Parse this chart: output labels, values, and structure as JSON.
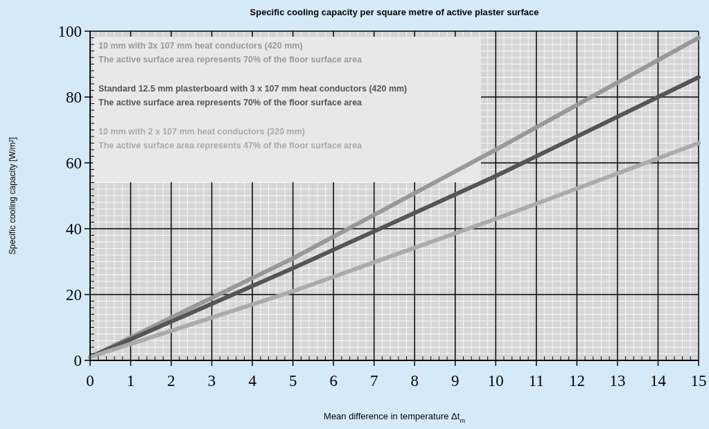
{
  "chart_data": {
    "type": "line",
    "title": "Specific cooling capacity per square metre of active plaster surface",
    "xlabel": "Mean difference in temperature    Δt$_{m}$",
    "ylabel": "Specific cooling capacity [W/m²]",
    "x": [
      0,
      5,
      10,
      15
    ],
    "series": [
      {
        "name": "10 mm with 3x 107 mm heat conductors (420 mm)\nThe active surface area represents 70% of the floor surface area",
        "color": "#999999",
        "values": [
          1,
          31,
          64,
          98
        ]
      },
      {
        "name": "Standard 12.5 mm plasterboard with 3 x 107 mm heat conductors (420 mm)\nThe active surface area represents 70% of the floor surface area",
        "color": "#555555",
        "values": [
          1,
          28,
          56,
          86
        ]
      },
      {
        "name": "10 mm with 2 x 107 mm heat conductors (320 mm)\nThe active surface area represents 47% of the floor surface area",
        "color": "#ababab",
        "values": [
          1,
          21,
          43,
          66
        ]
      }
    ],
    "xlim": [
      0,
      15
    ],
    "xticks": [
      0,
      1,
      2,
      3,
      4,
      5,
      6,
      7,
      8,
      9,
      10,
      11,
      12,
      13,
      14,
      15
    ],
    "ylim": [
      0,
      100
    ],
    "yticks": [
      0,
      20,
      40,
      60,
      80,
      100
    ],
    "grid": true,
    "legend": "top left",
    "line_style": "solid"
  }
}
